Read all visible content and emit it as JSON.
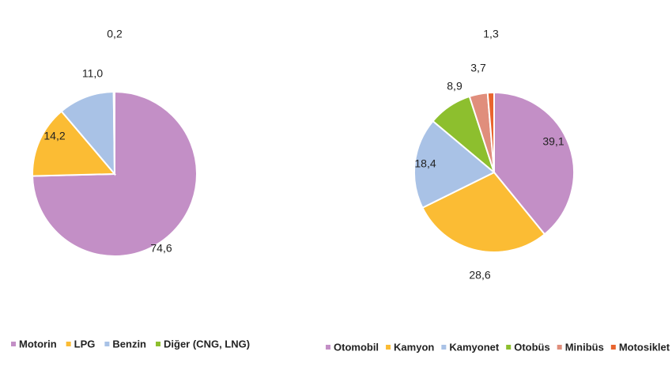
{
  "chart_data": [
    {
      "type": "pie",
      "categories": [
        "Motorin",
        "LPG",
        "Benzin",
        "Diğer (CNG, LNG)"
      ],
      "values": [
        74.6,
        14.2,
        11.0,
        0.2
      ],
      "value_labels": [
        "74,6",
        "14,2",
        "11,0",
        "0,2"
      ],
      "colors": [
        "#c38fc6",
        "#fbbc34",
        "#a9c2e6",
        "#8dbf2e"
      ],
      "start_angle_deg": 0,
      "direction": "clockwise",
      "legend": "bottom"
    },
    {
      "type": "pie",
      "categories": [
        "Otomobil",
        "Kamyon",
        "Kamyonet",
        "Otobüs",
        "Minibüs",
        "Motosiklet"
      ],
      "values": [
        39.1,
        28.6,
        18.4,
        8.9,
        3.7,
        1.3
      ],
      "value_labels": [
        "39,1",
        "28,6",
        "18,4",
        "8,9",
        "3,7",
        "1,3"
      ],
      "colors": [
        "#c38fc6",
        "#fbbc34",
        "#a9c2e6",
        "#8dbf2e",
        "#e08e7c",
        "#e8642e"
      ],
      "start_angle_deg": 0,
      "direction": "clockwise",
      "legend": "bottom"
    }
  ]
}
